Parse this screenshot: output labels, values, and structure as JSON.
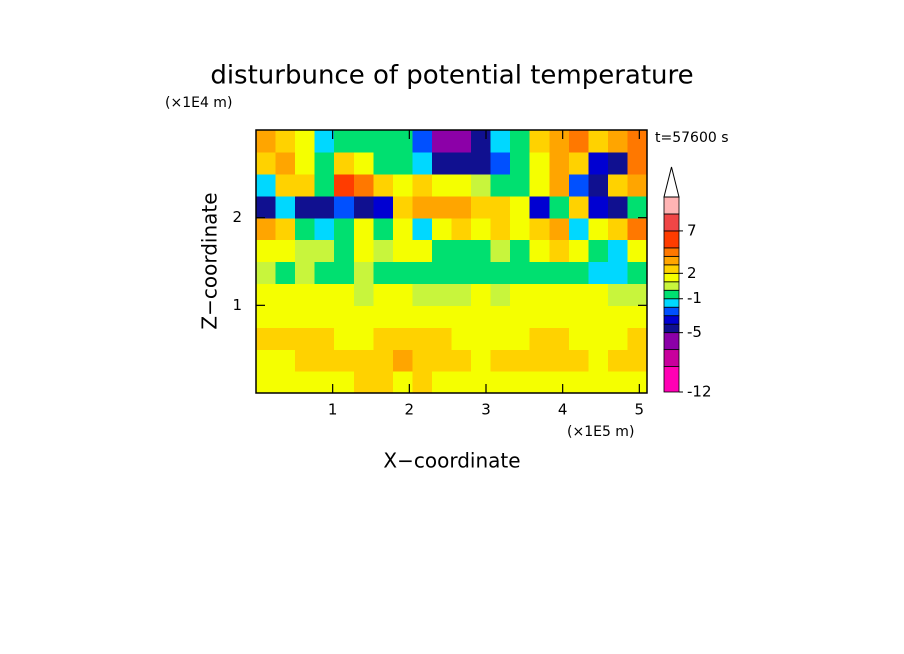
{
  "chart_data": {
    "type": "heatmap",
    "title": "disturbunce of potential temperature",
    "x_label": "X−coordinate",
    "y_label": "Z−coordinate",
    "x_unit": "(×1E5 m)",
    "y_unit": "(×1E4 m)",
    "annotation": "t=57600 s",
    "xlim": [
      0,
      5.1
    ],
    "xticks": [
      1,
      2,
      3,
      4,
      5
    ],
    "ylim": [
      0,
      3
    ],
    "yticks": [
      1,
      2
    ],
    "x": [
      0.13,
      0.38,
      0.64,
      0.89,
      1.15,
      1.4,
      1.66,
      1.91,
      2.17,
      2.42,
      2.68,
      2.93,
      3.19,
      3.44,
      3.7,
      3.95,
      4.21,
      4.46,
      4.72,
      4.97
    ],
    "y": [
      0.125,
      0.375,
      0.625,
      0.875,
      1.125,
      1.375,
      1.625,
      1.875,
      2.125,
      2.375,
      2.625,
      2.875
    ],
    "values": [
      [
        1.5,
        1.5,
        1.5,
        1.5,
        1.5,
        2.5,
        2.5,
        1.5,
        2.5,
        1.5,
        1.5,
        1.5,
        1.5,
        1.5,
        1.5,
        1.5,
        1.5,
        1.5,
        1.5,
        1.5
      ],
      [
        1.5,
        1.5,
        2.5,
        2.5,
        2.5,
        2.5,
        2.5,
        3.5,
        2.5,
        2.5,
        2.5,
        1.5,
        2.5,
        2.5,
        2.5,
        2.5,
        2.5,
        1.5,
        2.5,
        2.5
      ],
      [
        2.5,
        2.5,
        2.5,
        2.5,
        1.5,
        1.5,
        2.5,
        2.5,
        2.5,
        2.5,
        1.5,
        1.5,
        1.5,
        1.5,
        2.5,
        2.5,
        1.5,
        1.5,
        1.5,
        2.5
      ],
      [
        1.5,
        1.5,
        1.5,
        1.5,
        1.5,
        1.5,
        1.5,
        1.5,
        1.5,
        1.5,
        1.5,
        1.5,
        1.5,
        1.5,
        1.5,
        1.5,
        1.5,
        1.5,
        1.5,
        1.5
      ],
      [
        1.5,
        1.5,
        1.5,
        1.5,
        1.5,
        0.5,
        1.5,
        1.5,
        0.5,
        0.5,
        0.5,
        1.5,
        0.5,
        1.5,
        1.5,
        1.5,
        1.5,
        1.5,
        0.5,
        0.5
      ],
      [
        0.5,
        -0.5,
        0.5,
        -0.5,
        -0.5,
        0.5,
        -0.5,
        -0.5,
        -0.5,
        -0.5,
        -0.5,
        -0.5,
        -0.5,
        -0.5,
        -0.5,
        -0.5,
        -0.5,
        -1.5,
        -1.5,
        -0.5
      ],
      [
        1.5,
        1.5,
        0.5,
        0.5,
        -0.5,
        1.5,
        0.5,
        1.5,
        1.5,
        -0.5,
        -0.5,
        -0.5,
        0.5,
        -0.5,
        1.5,
        2.5,
        1.5,
        -0.5,
        -1.5,
        1.5
      ],
      [
        3.5,
        2.5,
        -0.5,
        -1.5,
        -0.5,
        1.5,
        -0.5,
        1.5,
        -1.5,
        1.5,
        2.5,
        1.5,
        2.5,
        1.5,
        2.5,
        3.5,
        -1.5,
        1.5,
        2.5,
        4.5
      ],
      [
        -4.5,
        -1.5,
        -4.5,
        -4.5,
        -2.5,
        -4.5,
        -3.5,
        2.5,
        3.5,
        3.5,
        3.5,
        2.5,
        2.5,
        1.5,
        -3.5,
        -0.5,
        2.5,
        -3.5,
        -4.5,
        -0.5
      ],
      [
        -1.5,
        2.5,
        2.5,
        -0.5,
        5.5,
        4.5,
        2.5,
        1.5,
        2.5,
        1.5,
        1.5,
        0.5,
        -0.5,
        -0.5,
        1.5,
        3.5,
        -2.5,
        -4.5,
        2.5,
        3.5
      ],
      [
        2.5,
        3.5,
        1.5,
        -0.5,
        2.5,
        1.5,
        -0.5,
        -0.5,
        -1.5,
        -4.5,
        -4.5,
        -4.5,
        -2.5,
        -0.5,
        1.5,
        3.5,
        2.5,
        -3.5,
        -4.5,
        4.5
      ],
      [
        3.5,
        2.5,
        1.5,
        -1.5,
        -0.5,
        -0.5,
        -0.5,
        -0.5,
        -2.5,
        -5.5,
        -5.5,
        -4.5,
        -1.5,
        -0.5,
        2.5,
        3.5,
        4.5,
        2.5,
        3.5,
        4.5
      ]
    ],
    "colorbar": {
      "lim": [
        -12,
        11
      ],
      "levels": [
        -12,
        -9,
        -7,
        -5,
        -4,
        -3,
        -2,
        -1,
        0,
        1,
        2,
        3,
        4,
        5,
        7,
        9,
        11
      ],
      "colors": [
        "#ff00b4",
        "#c8009c",
        "#8c00a8",
        "#101090",
        "#0000d2",
        "#0050ff",
        "#00d8ff",
        "#00e070",
        "#c8f53c",
        "#f5ff00",
        "#ffd200",
        "#ffa500",
        "#ff7800",
        "#ff3c00",
        "#f04646",
        "#ffb4b4"
      ],
      "ticks": [
        -12,
        -5,
        -1,
        2,
        7
      ]
    }
  }
}
